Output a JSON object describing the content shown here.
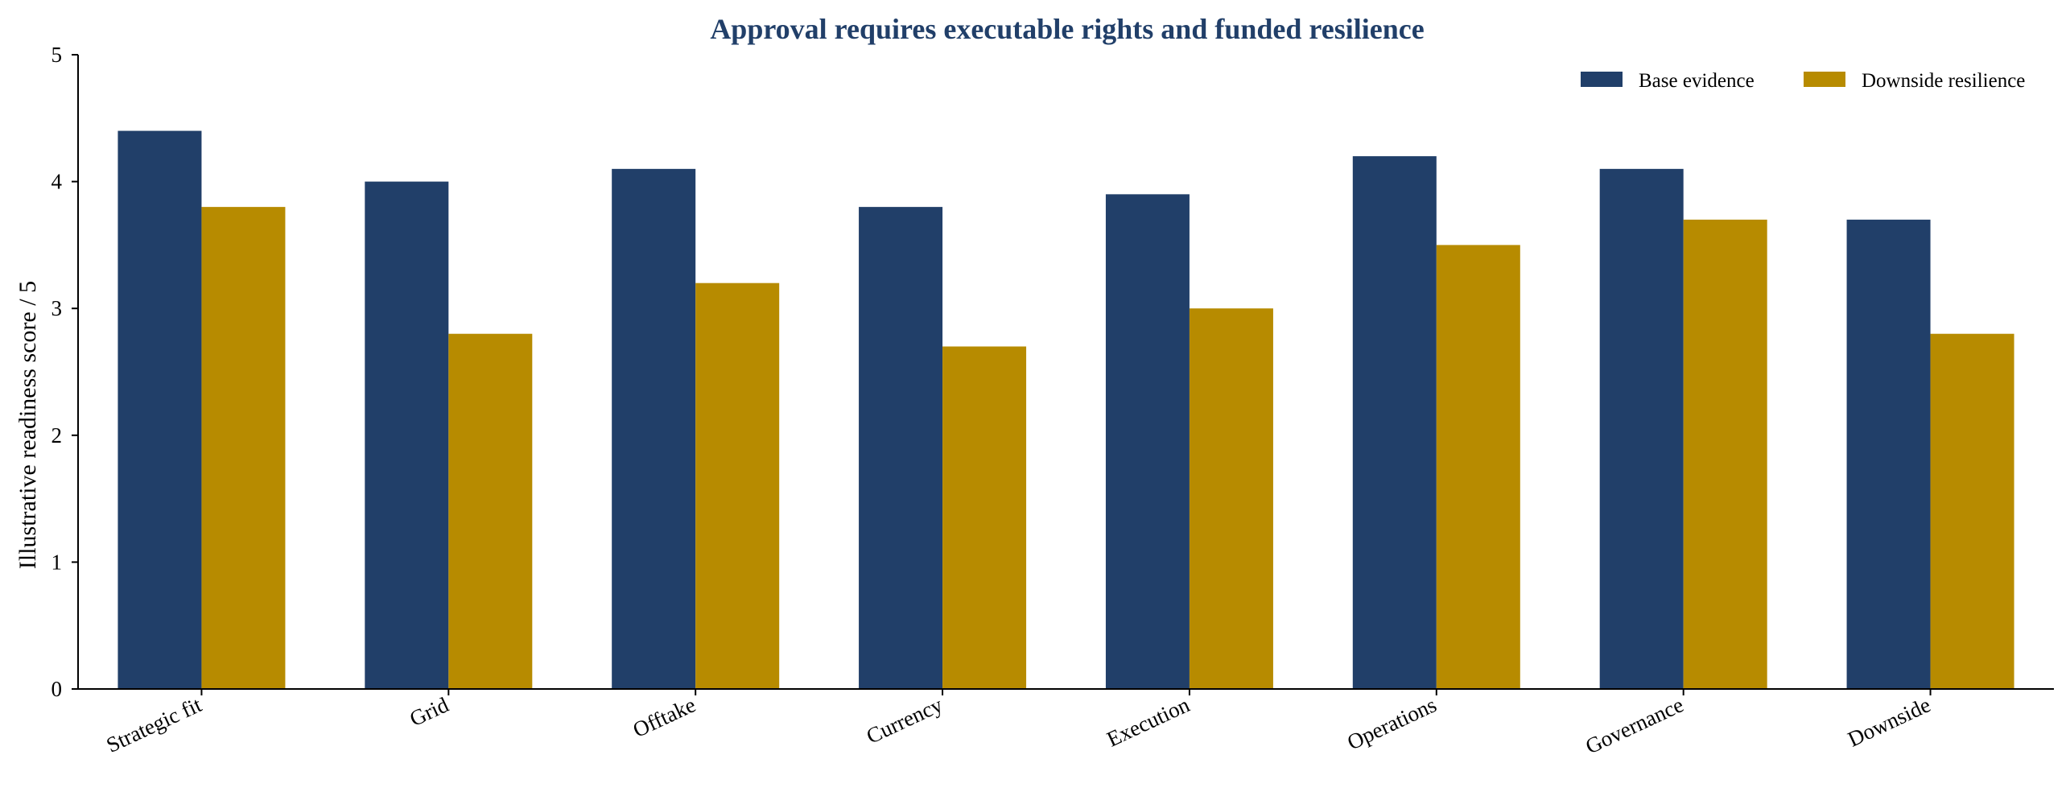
{
  "chart_data": {
    "type": "bar",
    "title": "Approval requires executable rights and funded resilience",
    "xlabel": "",
    "ylabel": "Illustrative readiness score / 5",
    "ylim": [
      0,
      5
    ],
    "yticks": [
      0,
      1,
      2,
      3,
      4,
      5
    ],
    "categories": [
      "Strategic fit",
      "Grid",
      "Offtake",
      "Currency",
      "Execution",
      "Operations",
      "Governance",
      "Downside"
    ],
    "series": [
      {
        "name": "Base evidence",
        "color": "#213f69",
        "values": [
          4.4,
          4.0,
          4.1,
          3.8,
          3.9,
          4.2,
          4.1,
          3.7
        ]
      },
      {
        "name": "Downside resilience",
        "color": "#b78b00",
        "values": [
          3.8,
          2.8,
          3.2,
          2.7,
          3.0,
          3.5,
          3.7,
          2.8
        ]
      }
    ],
    "legend_position": "top-right",
    "grid": false,
    "title_color": "#213f69"
  }
}
